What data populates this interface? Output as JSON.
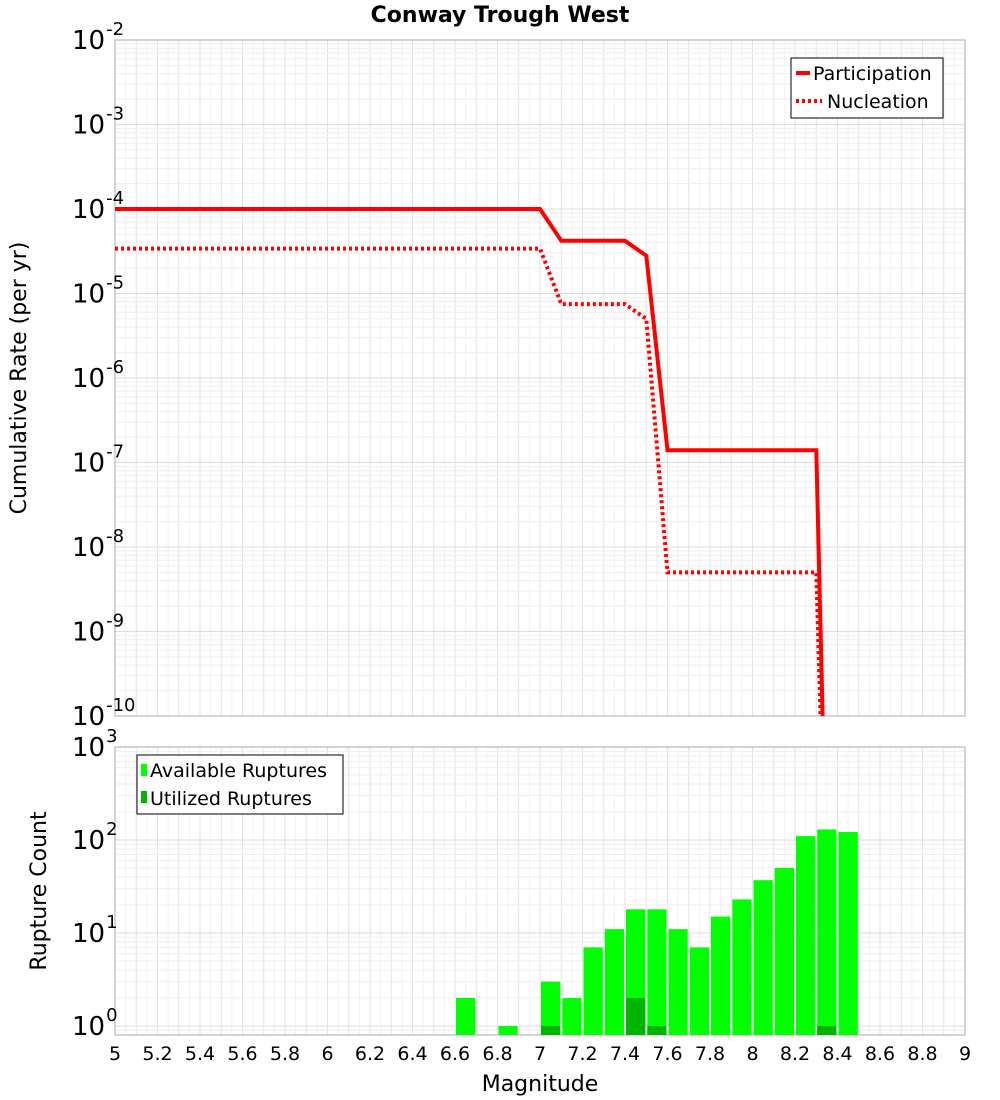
{
  "chart_data": [
    {
      "type": "line",
      "title": "Conway Trough West",
      "xlabel": "",
      "ylabel": "Cumulative Rate (per yr)",
      "xlim": [
        5,
        9
      ],
      "ylim": [
        1e-10,
        0.01
      ],
      "yscale": "log",
      "y_ticks": [
        {
          "base": "10",
          "exp": "-10",
          "value": 1e-10
        },
        {
          "base": "10",
          "exp": "-9",
          "value": 1e-09
        },
        {
          "base": "10",
          "exp": "-8",
          "value": 1e-08
        },
        {
          "base": "10",
          "exp": "-7",
          "value": 1e-07
        },
        {
          "base": "10",
          "exp": "-6",
          "value": 1e-06
        },
        {
          "base": "10",
          "exp": "-5",
          "value": 1e-05
        },
        {
          "base": "10",
          "exp": "-4",
          "value": 0.0001
        },
        {
          "base": "10",
          "exp": "-3",
          "value": 0.001
        },
        {
          "base": "10",
          "exp": "-2",
          "value": 0.01
        }
      ],
      "grid": true,
      "legend_position": "top-right",
      "series": [
        {
          "name": "Participation",
          "color": "#ff0000",
          "style": "solid",
          "points": [
            [
              5.0,
              0.0001
            ],
            [
              7.0,
              0.0001
            ],
            [
              7.1,
              4.2e-05
            ],
            [
              7.4,
              4.2e-05
            ],
            [
              7.5,
              2.8e-05
            ],
            [
              7.6,
              1.4e-07
            ],
            [
              8.3,
              1.4e-07
            ],
            [
              8.33,
              1e-10
            ]
          ]
        },
        {
          "name": "Nucleation",
          "color": "#ff0000",
          "style": "dotted",
          "points": [
            [
              5.0,
              3.4e-05
            ],
            [
              7.0,
              3.4e-05
            ],
            [
              7.1,
              7.5e-06
            ],
            [
              7.4,
              7.5e-06
            ],
            [
              7.5,
              5e-06
            ],
            [
              7.6,
              5e-09
            ],
            [
              8.3,
              5e-09
            ],
            [
              8.32,
              1e-10
            ]
          ]
        }
      ]
    },
    {
      "type": "bar",
      "title": "",
      "xlabel": "Magnitude",
      "ylabel": "Rupture Count",
      "xlim": [
        5,
        9
      ],
      "ylim": [
        0.8,
        1000
      ],
      "yscale": "log",
      "x_ticks": [
        "5",
        "5.2",
        "5.4",
        "5.6",
        "5.8",
        "6",
        "6.2",
        "6.4",
        "6.6",
        "6.8",
        "7",
        "7.2",
        "7.4",
        "7.6",
        "7.8",
        "8",
        "8.2",
        "8.4",
        "8.6",
        "8.8",
        "9"
      ],
      "y_ticks": [
        {
          "base": "10",
          "exp": "0",
          "value": 1
        },
        {
          "base": "10",
          "exp": "1",
          "value": 10
        },
        {
          "base": "10",
          "exp": "2",
          "value": 100
        },
        {
          "base": "10",
          "exp": "3",
          "value": 1000
        }
      ],
      "grid": true,
      "legend_position": "top-left",
      "bin_width": 0.1,
      "series": [
        {
          "name": "Available Ruptures",
          "color": "#00ff00",
          "bins": [
            [
              6.65,
              2
            ],
            [
              6.85,
              1
            ],
            [
              7.05,
              3
            ],
            [
              7.15,
              2
            ],
            [
              7.25,
              7
            ],
            [
              7.35,
              11
            ],
            [
              7.45,
              18
            ],
            [
              7.55,
              18
            ],
            [
              7.65,
              11
            ],
            [
              7.75,
              7
            ],
            [
              7.85,
              15
            ],
            [
              7.95,
              23
            ],
            [
              8.05,
              37
            ],
            [
              8.15,
              50
            ],
            [
              8.25,
              110
            ],
            [
              8.35,
              130
            ],
            [
              8.45,
              122
            ]
          ]
        },
        {
          "name": "Utilized Ruptures",
          "color": "#00b400",
          "bins": [
            [
              7.05,
              1
            ],
            [
              7.45,
              2
            ],
            [
              7.55,
              1
            ],
            [
              8.35,
              1
            ]
          ]
        }
      ]
    }
  ]
}
